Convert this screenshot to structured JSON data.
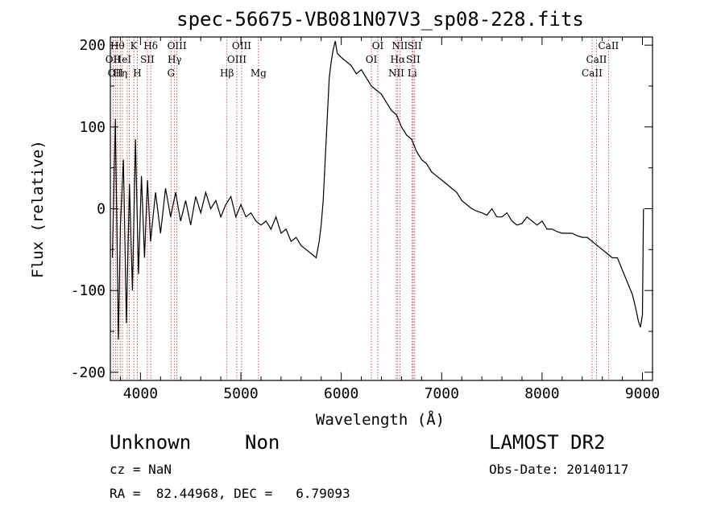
{
  "chart_data": {
    "type": "line",
    "title": "spec-56675-VB081N07V3_sp08-228.fits",
    "xlabel": "Wavelength (Å)",
    "ylabel": "Flux (relative)",
    "xlim": [
      3700,
      9100
    ],
    "ylim": [
      -210,
      210
    ],
    "xticks": [
      4000,
      5000,
      6000,
      7000,
      8000,
      9000
    ],
    "yticks": [
      -200,
      -100,
      0,
      100,
      200
    ],
    "grid": false,
    "series": [
      {
        "x": [
          3720,
          3750,
          3780,
          3800,
          3830,
          3860,
          3890,
          3920,
          3950,
          3980,
          4010,
          4040,
          4070,
          4100,
          4150,
          4200,
          4250,
          4300,
          4350,
          4400,
          4450,
          4500,
          4550,
          4600,
          4650,
          4700,
          4750,
          4800,
          4850,
          4900,
          4950,
          5000,
          5050,
          5100,
          5150,
          5200,
          5250,
          5300,
          5350,
          5400,
          5450,
          5500,
          5550,
          5600,
          5650,
          5700,
          5750,
          5780,
          5800,
          5820,
          5840,
          5860,
          5880,
          5900,
          5920,
          5940,
          5960,
          6000,
          6050,
          6100,
          6150,
          6200,
          6250,
          6300,
          6350,
          6400,
          6450,
          6500,
          6550,
          6600,
          6650,
          6700,
          6750,
          6800,
          6850,
          6900,
          6950,
          7000,
          7050,
          7100,
          7150,
          7200,
          7250,
          7300,
          7350,
          7400,
          7450,
          7500,
          7550,
          7600,
          7650,
          7700,
          7750,
          7800,
          7850,
          7900,
          7950,
          8000,
          8050,
          8100,
          8150,
          8200,
          8250,
          8300,
          8350,
          8400,
          8450,
          8500,
          8550,
          8600,
          8650,
          8700,
          8750,
          8800,
          8850,
          8900,
          8930,
          8960,
          8980,
          9000,
          9010
        ],
        "values": [
          -60,
          110,
          -160,
          -20,
          60,
          -140,
          30,
          -100,
          85,
          -80,
          40,
          -60,
          35,
          -40,
          20,
          -30,
          25,
          -10,
          20,
          -15,
          10,
          -20,
          15,
          -5,
          20,
          0,
          10,
          -10,
          5,
          15,
          -10,
          5,
          -10,
          -5,
          -15,
          -20,
          -15,
          -25,
          -10,
          -30,
          -25,
          -40,
          -35,
          -45,
          -50,
          -55,
          -60,
          -40,
          -20,
          10,
          60,
          110,
          160,
          180,
          195,
          205,
          190,
          185,
          180,
          175,
          165,
          170,
          160,
          150,
          145,
          140,
          130,
          120,
          115,
          100,
          90,
          85,
          70,
          60,
          55,
          45,
          40,
          35,
          30,
          25,
          20,
          10,
          5,
          0,
          -3,
          -5,
          -8,
          0,
          -10,
          -10,
          -5,
          -15,
          -20,
          -18,
          -10,
          -15,
          -20,
          -15,
          -25,
          -25,
          -28,
          -30,
          -30,
          -30,
          -33,
          -35,
          -35,
          -40,
          -45,
          -50,
          -55,
          -60,
          -60,
          -75,
          -90,
          -105,
          -120,
          -138,
          -145,
          -130,
          0
        ]
      }
    ],
    "lines": [
      {
        "wl": 3727,
        "label": "OII",
        "row": 2
      },
      {
        "wl": 3750,
        "label": "OII",
        "row": 3
      },
      {
        "wl": 3771,
        "label": "Hθ",
        "row": 1
      },
      {
        "wl": 3798,
        "label": "Hη",
        "row": 3
      },
      {
        "wl": 3820,
        "label": "HeI",
        "row": 2
      },
      {
        "wl": 3869,
        "label": "",
        "row": 0
      },
      {
        "wl": 3889,
        "label": "",
        "row": 0
      },
      {
        "wl": 3934,
        "label": "K",
        "row": 1
      },
      {
        "wl": 3969,
        "label": "H",
        "row": 3
      },
      {
        "wl": 4068,
        "label": "SII",
        "row": 2
      },
      {
        "wl": 4102,
        "label": "Hδ",
        "row": 1
      },
      {
        "wl": 4304,
        "label": "G",
        "row": 3
      },
      {
        "wl": 4340,
        "label": "Hγ",
        "row": 2
      },
      {
        "wl": 4363,
        "label": "OIII",
        "row": 1
      },
      {
        "wl": 4861,
        "label": "Hβ",
        "row": 3
      },
      {
        "wl": 4959,
        "label": "OIII",
        "row": 2
      },
      {
        "wl": 5007,
        "label": "OIII",
        "row": 1
      },
      {
        "wl": 5175,
        "label": "Mg",
        "row": 3
      },
      {
        "wl": 6300,
        "label": "OI",
        "row": 2
      },
      {
        "wl": 6364,
        "label": "OI",
        "row": 1
      },
      {
        "wl": 6548,
        "label": "NII",
        "row": 3
      },
      {
        "wl": 6563,
        "label": "Hα",
        "row": 2
      },
      {
        "wl": 6583,
        "label": "NII",
        "row": 1
      },
      {
        "wl": 6707,
        "label": "Li",
        "row": 3
      },
      {
        "wl": 6716,
        "label": "SII",
        "row": 2
      },
      {
        "wl": 6731,
        "label": "SII",
        "row": 1
      },
      {
        "wl": 8498,
        "label": "CaII",
        "row": 3
      },
      {
        "wl": 8542,
        "label": "CaII",
        "row": 2
      },
      {
        "wl": 8662,
        "label": "CaII",
        "row": 1
      }
    ]
  },
  "info": {
    "class": "Unknown",
    "subclass": "Non",
    "survey": "LAMOST DR2",
    "cz": "cz = NaN",
    "obs_date": "Obs-Date: 20140117",
    "coords": "RA =  82.44968, DEC =   6.79093"
  }
}
